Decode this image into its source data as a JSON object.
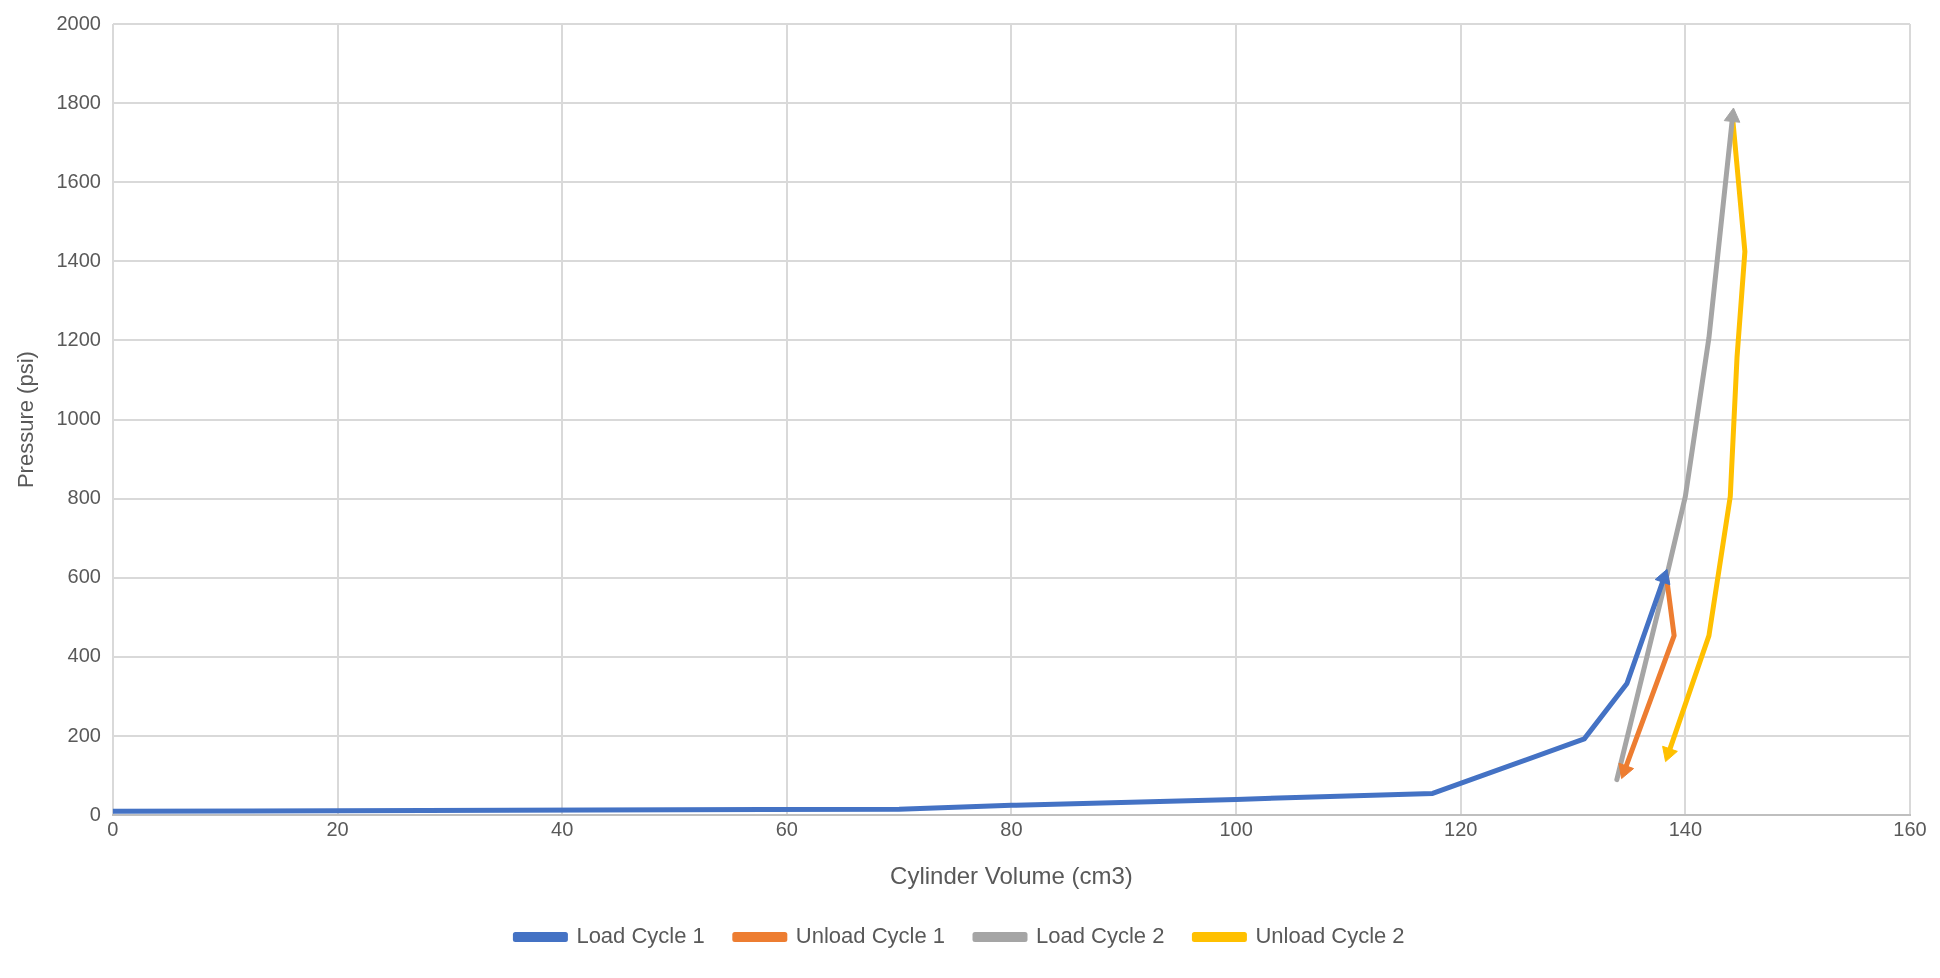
{
  "chart_data": {
    "type": "line",
    "xlabel": "Cylinder Volume (cm3)",
    "ylabel": "Pressure (psi)",
    "xlim": [
      0,
      160
    ],
    "xticks": [
      0,
      20,
      40,
      60,
      80,
      100,
      120,
      140,
      160
    ],
    "ylim": [
      0,
      2000
    ],
    "yticks": [
      0,
      200,
      400,
      600,
      800,
      1000,
      1200,
      1400,
      1600,
      1800,
      2000
    ],
    "grid": true,
    "legend": "bottom",
    "marker": "none",
    "line_style": "solid",
    "series": [
      {
        "name": "Load Cycle 1",
        "color": "#4472c4",
        "x": [
          0,
          70,
          80,
          100,
          117.5,
          131,
          134.8,
          138.1
        ],
        "values": [
          10,
          15,
          25,
          40,
          55,
          193,
          333,
          600
        ]
      },
      {
        "name": "Unload Cycle 1",
        "color": "#ed7d31",
        "x": [
          138.3,
          139,
          134.6
        ],
        "values": [
          606,
          454,
          114
        ]
      },
      {
        "name": "Load Cycle 2",
        "color": "#a5a5a5",
        "x": [
          133.9,
          138.3,
          140,
          142.1,
          144.2
        ],
        "values": [
          90,
          600,
          806,
          1207,
          1765
        ]
      },
      {
        "name": "Unload Cycle 2",
        "color": "#ffc000",
        "x": [
          144.2,
          145.3,
          144.6,
          144,
          142.1,
          138.5
        ],
        "values": [
          1765,
          1425,
          1158,
          806,
          454,
          157
        ]
      }
    ]
  }
}
